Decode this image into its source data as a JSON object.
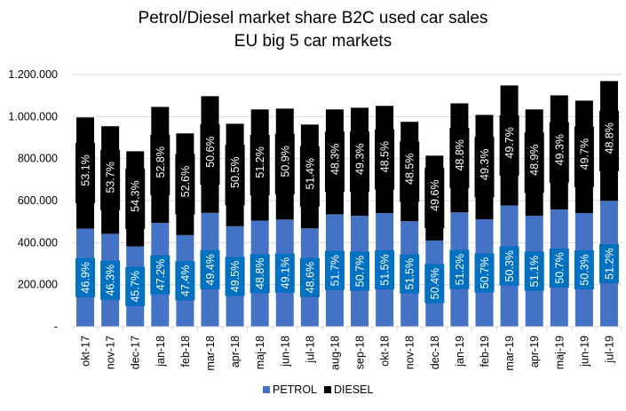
{
  "chart_data": {
    "type": "bar",
    "stacked": true,
    "title": "Petrol/Diesel market share B2C used car sales",
    "subtitle": "EU big 5 car markets",
    "xlabel": "",
    "ylabel": "",
    "ylim": [
      0,
      1200000
    ],
    "yticks": [
      0,
      200000,
      400000,
      600000,
      800000,
      1000000,
      1200000
    ],
    "ytick_labels": [
      "-",
      "200.000",
      "400.000",
      "600.000",
      "800.000",
      "1.000.000",
      "1.200.000"
    ],
    "grid": true,
    "legend_position": "bottom",
    "categories": [
      "okt-17",
      "nov-17",
      "dec-17",
      "jan-18",
      "feb-18",
      "mar-18",
      "apr-18",
      "maj-18",
      "jun-18",
      "jul-18",
      "aug-18",
      "sep-18",
      "okt-18",
      "nov-18",
      "dec-18",
      "jan-19",
      "feb-19",
      "mar-19",
      "apr-19",
      "maj-19",
      "jun-19",
      "jul-19"
    ],
    "totals": [
      996000,
      954000,
      835000,
      1046000,
      920000,
      1097000,
      966000,
      1034000,
      1038000,
      962000,
      1034000,
      1042000,
      1051000,
      975000,
      814000,
      1063000,
      1008000,
      1148000,
      1034000,
      1101000,
      1076000,
      1169000
    ],
    "series": [
      {
        "name": "PETROL",
        "color": "#4472C4",
        "label_color": "#0070C0",
        "share_labels": [
          "46.9%",
          "46.3%",
          "45.7%",
          "47.2%",
          "47.4%",
          "49.4%",
          "49.5%",
          "48.8%",
          "49.1%",
          "48.6%",
          "51.7%",
          "50.7%",
          "51.5%",
          "51.5%",
          "50.4%",
          "51.2%",
          "50.7%",
          "50.3%",
          "51.1%",
          "50.7%",
          "50.3%",
          "51.2%"
        ],
        "values": [
          467000,
          442000,
          382000,
          494000,
          436000,
          542000,
          478000,
          505000,
          510000,
          468000,
          535000,
          528000,
          541000,
          502000,
          410000,
          544000,
          511000,
          577000,
          528000,
          558000,
          541000,
          599000
        ]
      },
      {
        "name": "DIESEL",
        "color": "#000000",
        "label_color": "#000000",
        "share_labels": [
          "53.1%",
          "53.7%",
          "54.3%",
          "52.8%",
          "52.6%",
          "50.6%",
          "50.5%",
          "51.2%",
          "50.9%",
          "51.4%",
          "48.3%",
          "49.3%",
          "48.5%",
          "48.5%",
          "49.6%",
          "48.8%",
          "49.3%",
          "49.7%",
          "48.9%",
          "49.3%",
          "49.7%",
          "48.8%"
        ],
        "values": [
          529000,
          512000,
          453000,
          552000,
          484000,
          555000,
          488000,
          529000,
          528000,
          494000,
          499000,
          514000,
          510000,
          473000,
          404000,
          519000,
          497000,
          571000,
          506000,
          543000,
          535000,
          570000
        ]
      }
    ]
  }
}
